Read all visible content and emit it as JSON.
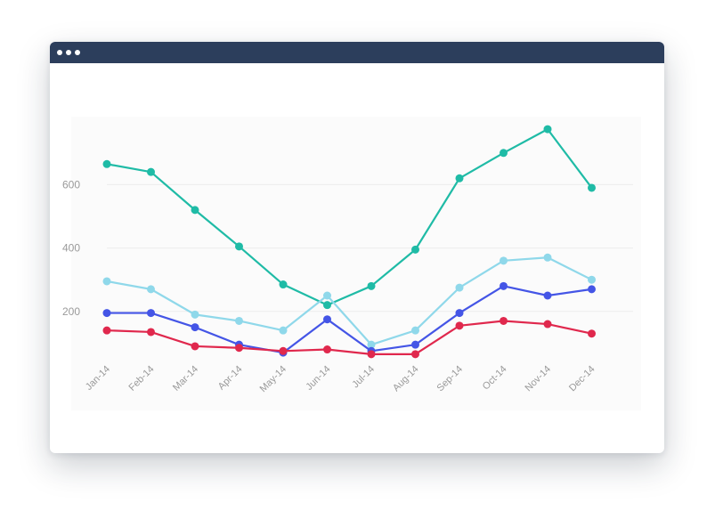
{
  "window": {
    "titlebar_color": "#2c3e5c",
    "controls": [
      "dot-icon",
      "dot-icon",
      "dot-icon"
    ]
  },
  "chart_data": {
    "type": "line",
    "title": "",
    "xlabel": "",
    "ylabel": "",
    "categories": [
      "Jan-14",
      "Feb-14",
      "Mar-14",
      "Apr-14",
      "May-14",
      "Jun-14",
      "Jul-14",
      "Aug-14",
      "Sep-14",
      "Oct-14",
      "Nov-14",
      "Dec-14"
    ],
    "y_ticks": [
      200,
      400,
      600
    ],
    "ylim": [
      0,
      800
    ],
    "grid": "horizontal",
    "legend": "none",
    "series": [
      {
        "color": "#1fbba6",
        "values": [
          665,
          640,
          520,
          405,
          285,
          220,
          280,
          395,
          620,
          700,
          775,
          590
        ]
      },
      {
        "color": "#8fd8ea",
        "values": [
          295,
          270,
          190,
          170,
          140,
          250,
          95,
          140,
          275,
          360,
          370,
          300
        ]
      },
      {
        "color": "#4455e6",
        "values": [
          195,
          195,
          150,
          95,
          70,
          175,
          75,
          95,
          195,
          280,
          250,
          270
        ]
      },
      {
        "color": "#e0284d",
        "values": [
          140,
          135,
          90,
          85,
          75,
          80,
          65,
          65,
          155,
          170,
          160,
          130
        ]
      }
    ]
  }
}
